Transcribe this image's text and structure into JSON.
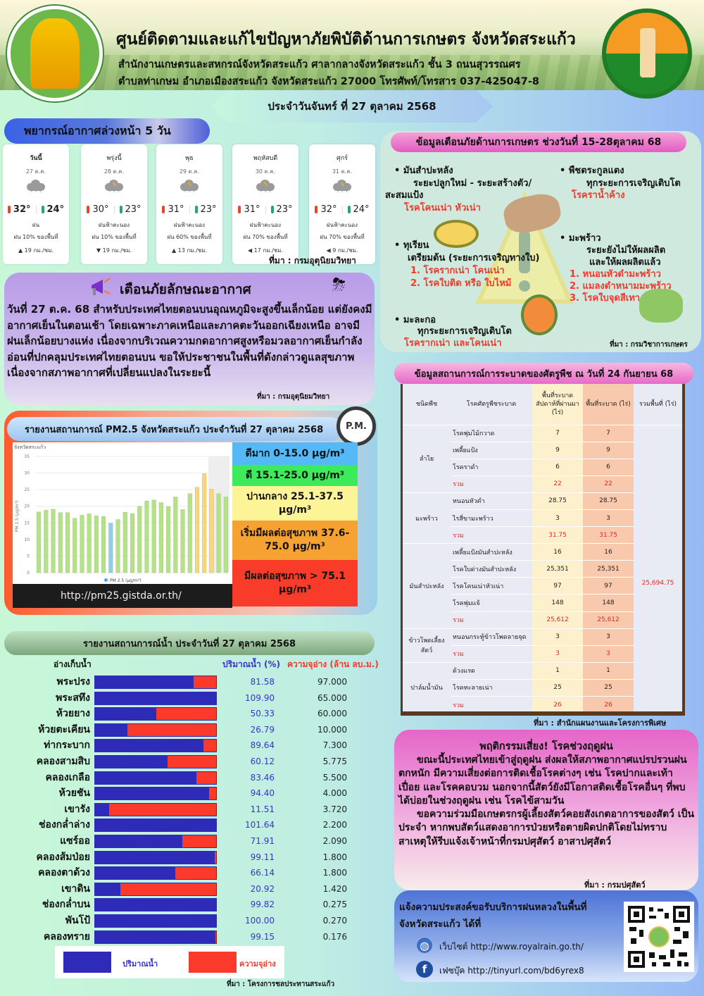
{
  "header": {
    "title": "ศูนย์ติดตามและแก้ไขปัญหาภัยพิบัติด้านการเกษตร จังหวัดสระแก้ว",
    "address_line1": "สำนักงานเกษตรและสหกรณ์จังหวัดสระแก้ว ศาลากลางจังหวัดสระแก้ว ชั้น 3 ถนนสุวรรณศร",
    "address_line2": "ตำบลท่าเกษม อำเภอเมืองสระแก้ว จังหวัดสระแก้ว 27000 โทรศัพท์/โทรสาร 037-425047-8",
    "date": "ประจำวันจันทร์ ที่ 27 ตุลาคม 2568",
    "logo_left_text": "MINISTRY OF AGRICULTURE AND COOPERATIVES"
  },
  "forecast": {
    "title": "พยากรณ์อากาศล่วงหน้า 5 วัน",
    "source": "ที่มา : กรมอุตุนิยมวิทยา",
    "days": [
      {
        "day": "วันนี้",
        "date": "27 ต.ค.",
        "icon": "rain-cloud-icon",
        "high": "32°",
        "low": "24°",
        "condition": "ฝน",
        "rain": "ฝน 10% ของพื้นที่",
        "wind": "▲ 19 กม./ชม."
      },
      {
        "day": "พรุ่งนี้",
        "date": "28 ต.ค.",
        "icon": "thunderstorm-icon",
        "high": "30°",
        "low": "23°",
        "condition": "ฝนฟ้าคะนอง",
        "rain": "ฝน 10% ของพื้นที่",
        "wind": "▼ 19 กม./ชม."
      },
      {
        "day": "พุธ",
        "date": "29 ต.ค.",
        "icon": "thunderstorm-icon",
        "high": "31°",
        "low": "23°",
        "condition": "ฝนฟ้าคะนอง",
        "rain": "ฝน 60% ของพื้นที่",
        "wind": "▲ 13 กม./ชม."
      },
      {
        "day": "พฤหัสบดี",
        "date": "30 ต.ค.",
        "icon": "thunderstorm-icon",
        "high": "31°",
        "low": "23°",
        "condition": "ฝนฟ้าคะนอง",
        "rain": "ฝน 70% ของพื้นที่",
        "wind": "◀ 17 กม./ชม."
      },
      {
        "day": "ศุกร์",
        "date": "31 ต.ค.",
        "icon": "thunderstorm-icon",
        "high": "32°",
        "low": "24°",
        "condition": "ฝนฟ้าคะนอง",
        "rain": "ฝน 70% ของพื้นที่",
        "wind": "◀ 9 กม./ชม."
      }
    ]
  },
  "weather_warning": {
    "title": "เตือนภัยลักษณะอากาศ",
    "text": "วันที่ 27 ต.ค. 68  สำหรับประเทศไทยตอนบนอุณหภูมิจะสูงขึ้นเล็กน้อย แต่ยังคงมีอากาศเย็นในตอนเช้า โดยเฉพาะภาคเหนือและภาคตะวันออกเฉียงเหนือ อาจมีฝนเล็กน้อยบางแห่ง เนื่องจากบริเวณความกดอากาศสูงหรือมวลอากาศเย็นกำลังอ่อนที่ปกคลุมประเทศไทยตอนบน ขอให้ประชาชนในพื้นที่ดังกล่าวดูแลสุขภาพ เนื่องจากสภาพอากาศที่เปลี่ยนแปลงในระยะนี้",
    "source": "ที่มา : กรมอุตุนิยมวิทยา"
  },
  "pm25": {
    "title": "รายงานสถานการณ์ PM2.5 จังหวัดสระแก้ว ประจำวันที่ 27 ตุลาคม 2568",
    "badge": "P.M.",
    "url": "http://pm25.gistda.or.th/",
    "levels": [
      {
        "label": "ดีมาก 0-15.0 µg/m³",
        "color": "#54b9f6"
      },
      {
        "label": "ดี 15.1-25.0 µg/m³",
        "color": "#3cea5a"
      },
      {
        "label": "ปานกลาง 25.1-37.5 µg/m³",
        "color": "#fdf497"
      },
      {
        "label": "เริ่มมีผลต่อสุขภาพ 37.6-75.0 µg/m³",
        "color": "#f6a233"
      },
      {
        "label": "มีผลต่อสุขภาพ > 75.1 µg/m³",
        "color": "#f93b2a"
      }
    ]
  },
  "chart_data": {
    "type": "bar",
    "title": "จังหวัดสระแก้ว",
    "xlabel": "",
    "ylabel": "PM 2.5 (µg/m³)",
    "legend": "PM 2.5 (µg/m³)",
    "ylim": [
      0,
      35
    ],
    "yticks": [
      0,
      5,
      10,
      15,
      20,
      25,
      30,
      35
    ],
    "grid": true,
    "values": [
      18.3,
      18.8,
      19.1,
      18.1,
      18.1,
      16.4,
      17.3,
      17.7,
      17.1,
      16.9,
      14.9,
      16.0,
      18.2,
      17.8,
      20.0,
      21.6,
      21.9,
      21.1,
      19.9,
      22.8,
      19.0,
      23.8,
      25.7,
      29.8,
      25.2,
      23.8,
      22.8
    ],
    "colors_by_level": {
      "very_good": "#8ccdf3",
      "good": "#b5e287",
      "moderate": "#f8d680"
    }
  },
  "water": {
    "title": "รายงานสถานการณ์น้ำ ประจำวันที่ 27 ตุลาคม 2568",
    "col_reservoir": "อ่างเก็บน้ำ",
    "col_percent": "ปริมาณน้ำ (%)",
    "col_capacity": "ความจุอ่าง (ล้าน ลบ.ม.)",
    "legend_volume": "ปริมาณน้ำ",
    "legend_capacity": "ความจุอ่าง",
    "source": "ที่มา : โครงการชลประทานสระแก้ว",
    "rows": [
      {
        "name": "พระปรง",
        "pct": "81.58",
        "cap": "97.000",
        "fill": 81.58
      },
      {
        "name": "พระสทึง",
        "pct": "109.90",
        "cap": "65.000",
        "fill": 100
      },
      {
        "name": "ห้วยยาง",
        "pct": "50.33",
        "cap": "60.000",
        "fill": 50.33
      },
      {
        "name": "ห้วยตะเคียน",
        "pct": "26.79",
        "cap": "10.000",
        "fill": 26.79
      },
      {
        "name": "ท่ากระบาก",
        "pct": "89.64",
        "cap": "7.300",
        "fill": 89.64
      },
      {
        "name": "คลองสามสิบ",
        "pct": "60.12",
        "cap": "5.775",
        "fill": 60.12
      },
      {
        "name": "คลองเกลือ",
        "pct": "83.46",
        "cap": "5.500",
        "fill": 83.46
      },
      {
        "name": "ห้วยชัน",
        "pct": "94.40",
        "cap": "4.000",
        "fill": 94.4
      },
      {
        "name": "เขารัง",
        "pct": "11.51",
        "cap": "3.720",
        "fill": 11.51
      },
      {
        "name": "ช่องกล่ำล่าง",
        "pct": "101.64",
        "cap": "2.200",
        "fill": 100
      },
      {
        "name": "แซร์ออ",
        "pct": "71.91",
        "cap": "2.090",
        "fill": 71.91
      },
      {
        "name": "คลองส้มป่อย",
        "pct": "99.11",
        "cap": "1.800",
        "fill": 99.11
      },
      {
        "name": "คลองตาด้วง",
        "pct": "66.14",
        "cap": "1.800",
        "fill": 66.14
      },
      {
        "name": "เขาดิน",
        "pct": "20.92",
        "cap": "1.420",
        "fill": 20.92
      },
      {
        "name": "ช่องกล่ำบน",
        "pct": "99.82",
        "cap": "0.275",
        "fill": 99.82
      },
      {
        "name": "พันโป้",
        "pct": "100.00",
        "cap": "0.270",
        "fill": 100
      },
      {
        "name": "คลองทราย",
        "pct": "99.15",
        "cap": "0.176",
        "fill": 99.15
      }
    ]
  },
  "agri_warning": {
    "title": "ข้อมูลเตือนภัยด้านการเกษตร ช่วงวันที่ 15-28ตุลาคม 68",
    "source": "ที่มา : กรมวิชาการเกษตร",
    "cassava": {
      "crop": "• มันสำปะหลัง",
      "stage1": "ระยะปลูกใหม่ - ระยะสร้างตัว/",
      "stage2": "สะสมแป้ง",
      "disease": "โรคโคนเน่า หัวเน่า"
    },
    "cucurbit": {
      "crop": "• พืชตระกูลแตง",
      "stage": "ทุกระยะการเจริญเติบโต",
      "disease": "โรคราน้ำค้าง"
    },
    "durian": {
      "crop": "• ทุเรียน",
      "stage": "เตรียมต้น (ระยะการเจริญทางใบ)",
      "disease1": "1. โรครากเน่า โคนเน่า",
      "disease2": "2. โรคใบติด หรือ ใบไหม้"
    },
    "coconut": {
      "crop": "• มะพร้าว",
      "stage1": "ระยะยังไม่ให้ผลผลิต",
      "stage2": "และให้ผลผลิตแล้ว",
      "disease1": "1. หนอนหัวดำมะพร้าว",
      "disease2": "2. แมลงดำหนามมะพร้าว",
      "disease3": "3. โรคใบจุดสีเทา"
    },
    "papaya": {
      "crop": "• มะละกอ",
      "stage": "ทุกระยะการเจริญเติบโต",
      "disease": "โรครากเน่า และโคนเน่า"
    }
  },
  "pest": {
    "title": "ข้อมูลสถานการณ์การระบาดของศัตรูพืช ณ วันที่ 24 กันยายน 68",
    "source": "ที่มา : สำนักแผนงานและโครงการพิเศษ",
    "headers": [
      "ชนิดพืช",
      "โรคศัตรูพืชระบาด",
      "พื้นที่ระบาดสัปดาห์ที่ผ่านมา (ไร่)",
      "พื้นที่ระบาด (ไร่)",
      "รวมพื้นที่ (ไร่)"
    ],
    "grand_total": "25,694.75",
    "sum_label": "รวม",
    "groups": [
      {
        "crop": "ลำไย",
        "rows": [
          [
            "โรคพุ่มไม้กวาด",
            "7",
            "7"
          ],
          [
            "เพลี้ยแป้ง",
            "9",
            "9"
          ],
          [
            "โรคราดำ",
            "6",
            "6"
          ]
        ],
        "sum": [
          "22",
          "22"
        ]
      },
      {
        "crop": "มะพร้าว",
        "rows": [
          [
            "หนอนหัวดำ",
            "28.75",
            "28.75"
          ],
          [
            "ไรสี่ขามะพร้าว",
            "3",
            "3"
          ]
        ],
        "sum": [
          "31.75",
          "31.75"
        ]
      },
      {
        "crop": "มันสำปะหลัง",
        "rows": [
          [
            "เพลี้ยแป้งมันสำปะหลัง",
            "16",
            "16"
          ],
          [
            "โรคใบด่างมันสำปะหลัง",
            "25,351",
            "25,351"
          ],
          [
            "โรคโคนเน่าหัวเน่า",
            "97",
            "97"
          ],
          [
            "โรคพุ่มแจ้",
            "148",
            "148"
          ]
        ],
        "sum": [
          "25,612",
          "25,612"
        ]
      },
      {
        "crop": "ข้าวโพดเลี้ยงสัตว์",
        "rows": [
          [
            "หนอนกระทู้ข้าวโพดลายจุด",
            "3",
            "3"
          ]
        ],
        "sum": [
          "3",
          "3"
        ]
      },
      {
        "crop": "ปาล์มน้ำมัน",
        "rows": [
          [
            "ด้วงแรด",
            "1",
            "1"
          ],
          [
            "โรคทะลายเน่า",
            "25",
            "25"
          ]
        ],
        "sum": [
          "26",
          "26"
        ]
      }
    ]
  },
  "animal": {
    "title": "พฤติกรรมเสี่ยง! โรคช่วงฤดูฝน",
    "para1": "ขณะนี้ประเทศไทยเข้าสู่ฤดูฝน ส่งผลให้สภาพอากาศแปรปรวนฝนตกหนัก มีความเสี่ยงต่อการติดเชื้อโรคต่างๆ เช่น โรคปากและเท้าเปื่อย และโรคคอบวม นอกจากนี้สัตว์ยังมีโอกาสติดเชื้อโรคอื่นๆ ที่พบได้บ่อยในช่วงฤดูฝน เช่น โรคไข้สามวัน",
    "para2": "ขอความร่วมมือเกษตรกรผู้เลี้ยงสัตว์คอยสังเกตอาการของสัตว์ เป็นประจำ หากพบสัตว์แสดงอาการป่วยหรือตายผิดปกติโดยไม่ทราบสาเหตุให้รีบแจ้งเจ้าหน้าที่กรมปศุสัตว์ อาสาปศุสัตว์",
    "source": "ที่มา : กรมปศุสัตว์"
  },
  "royal_rain": {
    "title_line1": "แจ้งความประสงค์ขอรับบริการฝนหลวงในพื้นที่",
    "title_line2": "จังหวัดสระแก้ว ได้ที่",
    "website": "เว็บไซต์ http://www.royalrain.go.th/",
    "facebook": "เฟซบุ๊ค http://tinyurl.com/bd6yrex8"
  }
}
